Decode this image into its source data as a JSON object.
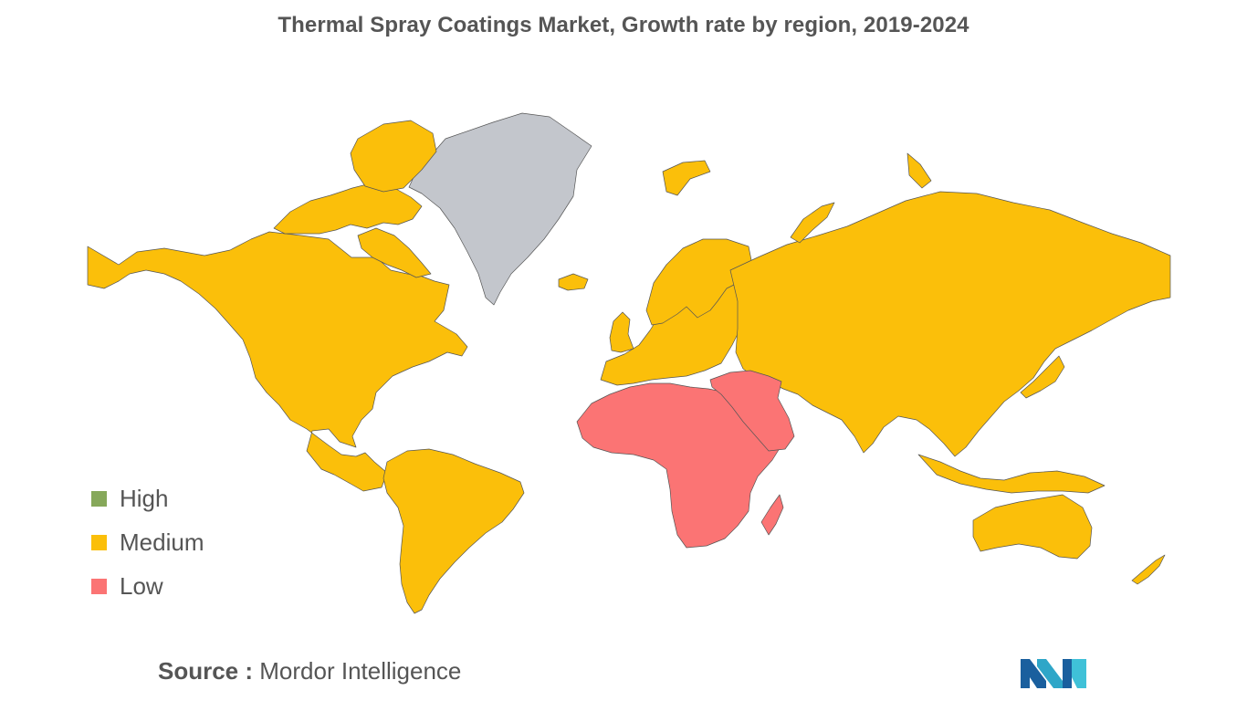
{
  "title": "Thermal Spray Coatings Market, Growth rate by region, 2019-2024",
  "legend": [
    {
      "label": "High",
      "color": "#86a85a"
    },
    {
      "label": "Medium",
      "color": "#fbbf0a"
    },
    {
      "label": "Low",
      "color": "#fb7474"
    }
  ],
  "no_data_color": "#c3c6cc",
  "regions": {
    "north_america": "Medium",
    "south_america": "Medium",
    "europe": "Medium",
    "russia_and_asia": "Medium",
    "oceania": "Medium",
    "africa": "Low",
    "middle_east": "Low",
    "greenland": "no data"
  },
  "source": {
    "key": "Source :",
    "value": "Mordor Intelligence"
  }
}
